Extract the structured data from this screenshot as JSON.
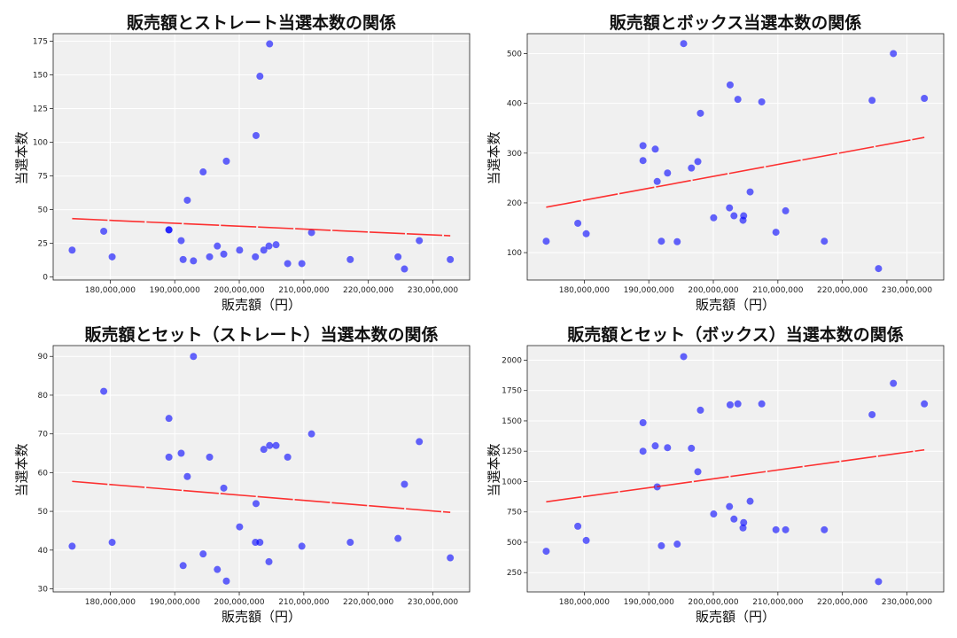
{
  "chart_data": [
    {
      "type": "scatter",
      "title": "販売額とストレート当選本数の関係",
      "xlabel": "販売額（円）",
      "ylabel": "当選本数",
      "xlim": [
        171160000,
        235700000
      ],
      "ylim": [
        -2.2,
        180.6
      ],
      "xticks": [
        180000000,
        190000000,
        200000000,
        210000000,
        220000000,
        230000000
      ],
      "xtick_labels": [
        "180,000,000",
        "190,000,000",
        "200,000,000",
        "210,000,000",
        "220,000,000",
        "230,000,000"
      ],
      "yticks": [
        0,
        25,
        50,
        75,
        100,
        125,
        150,
        175
      ],
      "ytick_labels": [
        "0",
        "25",
        "50",
        "75",
        "100",
        "125",
        "150",
        "175"
      ],
      "grid": true,
      "trendline": true,
      "x": [
        174100000,
        179000000,
        180300000,
        189100000,
        189100000,
        191000000,
        191300000,
        191950000,
        192900000,
        194400000,
        195400000,
        196600000,
        197600000,
        198000000,
        200050000,
        202500000,
        202600000,
        203200000,
        203800000,
        204600000,
        204700000,
        205700000,
        207500000,
        209700000,
        211200000,
        217200000,
        224600000,
        225600000,
        227900000,
        232700000
      ],
      "y": [
        20,
        34,
        15,
        35,
        35,
        27,
        13,
        57,
        12,
        78,
        15,
        23,
        17,
        86,
        20,
        15,
        105,
        149,
        20,
        23,
        173,
        24,
        10,
        10,
        33,
        13,
        15,
        6,
        27,
        13
      ]
    },
    {
      "type": "scatter",
      "title": "販売額とボックス当選本数の関係",
      "xlabel": "販売額（円）",
      "ylabel": "当選本数",
      "xlim": [
        171160000,
        235700000
      ],
      "ylim": [
        45,
        540
      ],
      "xticks": [
        180000000,
        190000000,
        200000000,
        210000000,
        220000000,
        230000000
      ],
      "xtick_labels": [
        "180,000,000",
        "190,000,000",
        "200,000,000",
        "210,000,000",
        "220,000,000",
        "230,000,000"
      ],
      "yticks": [
        100,
        200,
        300,
        400,
        500
      ],
      "ytick_labels": [
        "100",
        "200",
        "300",
        "400",
        "500"
      ],
      "grid": true,
      "trendline": true,
      "x": [
        174100000,
        179000000,
        180300000,
        189100000,
        189100000,
        191000000,
        191300000,
        191950000,
        192900000,
        194400000,
        195400000,
        196600000,
        197600000,
        198000000,
        200050000,
        202500000,
        202600000,
        203200000,
        203800000,
        204600000,
        204700000,
        205700000,
        207500000,
        209700000,
        211200000,
        217200000,
        224600000,
        225600000,
        227900000,
        232700000
      ],
      "y": [
        123,
        159,
        138,
        315,
        285,
        308,
        243,
        123,
        260,
        122,
        520,
        270,
        283,
        380,
        170,
        190,
        437,
        174,
        408,
        165,
        174,
        222,
        403,
        141,
        184,
        123,
        406,
        68,
        500,
        410
      ]
    },
    {
      "type": "scatter",
      "title": "販売額とセット（ストレート）当選本数の関係",
      "xlabel": "販売額（円）",
      "ylabel": "当選本数",
      "xlim": [
        171160000,
        235700000
      ],
      "ylim": [
        29.2,
        92.8
      ],
      "xticks": [
        180000000,
        190000000,
        200000000,
        210000000,
        220000000,
        230000000
      ],
      "xtick_labels": [
        "180,000,000",
        "190,000,000",
        "200,000,000",
        "210,000,000",
        "220,000,000",
        "230,000,000"
      ],
      "yticks": [
        30,
        40,
        50,
        60,
        70,
        80,
        90
      ],
      "ytick_labels": [
        "30",
        "40",
        "50",
        "60",
        "70",
        "80",
        "90"
      ],
      "grid": true,
      "trendline": true,
      "x": [
        174100000,
        179000000,
        180300000,
        189100000,
        189100000,
        191000000,
        191300000,
        191950000,
        192900000,
        194400000,
        195400000,
        196600000,
        197600000,
        198000000,
        200050000,
        202500000,
        202600000,
        203200000,
        203800000,
        204600000,
        204700000,
        205700000,
        207500000,
        209700000,
        211200000,
        217200000,
        224600000,
        225600000,
        227900000,
        232700000
      ],
      "y": [
        41,
        81,
        42,
        74,
        64,
        65,
        36,
        59,
        90,
        39,
        64,
        35,
        56,
        32,
        46,
        42,
        52,
        42,
        66,
        37,
        67,
        67,
        64,
        41,
        70,
        42,
        43,
        57,
        68,
        38
      ]
    },
    {
      "type": "scatter",
      "title": "販売額とセット（ボックス）当選本数の関係",
      "xlabel": "販売額（円）",
      "ylabel": "当選本数",
      "xlim": [
        171160000,
        235700000
      ],
      "ylim": [
        91,
        2120
      ],
      "xticks": [
        180000000,
        190000000,
        200000000,
        210000000,
        220000000,
        230000000
      ],
      "xtick_labels": [
        "180,000,000",
        "190,000,000",
        "200,000,000",
        "210,000,000",
        "220,000,000",
        "230,000,000"
      ],
      "yticks": [
        250,
        500,
        750,
        1000,
        1250,
        1500,
        1750,
        2000
      ],
      "ytick_labels": [
        "250",
        "500",
        "750",
        "1000",
        "1250",
        "1500",
        "1750",
        "2000"
      ],
      "grid": true,
      "trendline": true,
      "x": [
        174100000,
        179000000,
        180300000,
        189100000,
        189100000,
        191000000,
        191300000,
        191950000,
        192900000,
        194400000,
        195400000,
        196600000,
        197600000,
        198000000,
        200050000,
        202500000,
        202600000,
        203200000,
        203800000,
        204600000,
        204700000,
        205700000,
        207500000,
        209700000,
        211200000,
        217200000,
        224600000,
        225600000,
        227900000,
        232700000
      ],
      "y": [
        426,
        632,
        515,
        1485,
        1250,
        1294,
        956,
        471,
        1279,
        485,
        2029,
        1274,
        1081,
        1588,
        733,
        794,
        1632,
        691,
        1640,
        618,
        662,
        838,
        1640,
        603,
        603,
        603,
        1551,
        176,
        1809,
        1640
      ]
    }
  ],
  "colors": {
    "points": "#0000ff",
    "trendline": "#ff0000",
    "plot_bg": "#f0f0f0",
    "grid": "#ffffff"
  }
}
